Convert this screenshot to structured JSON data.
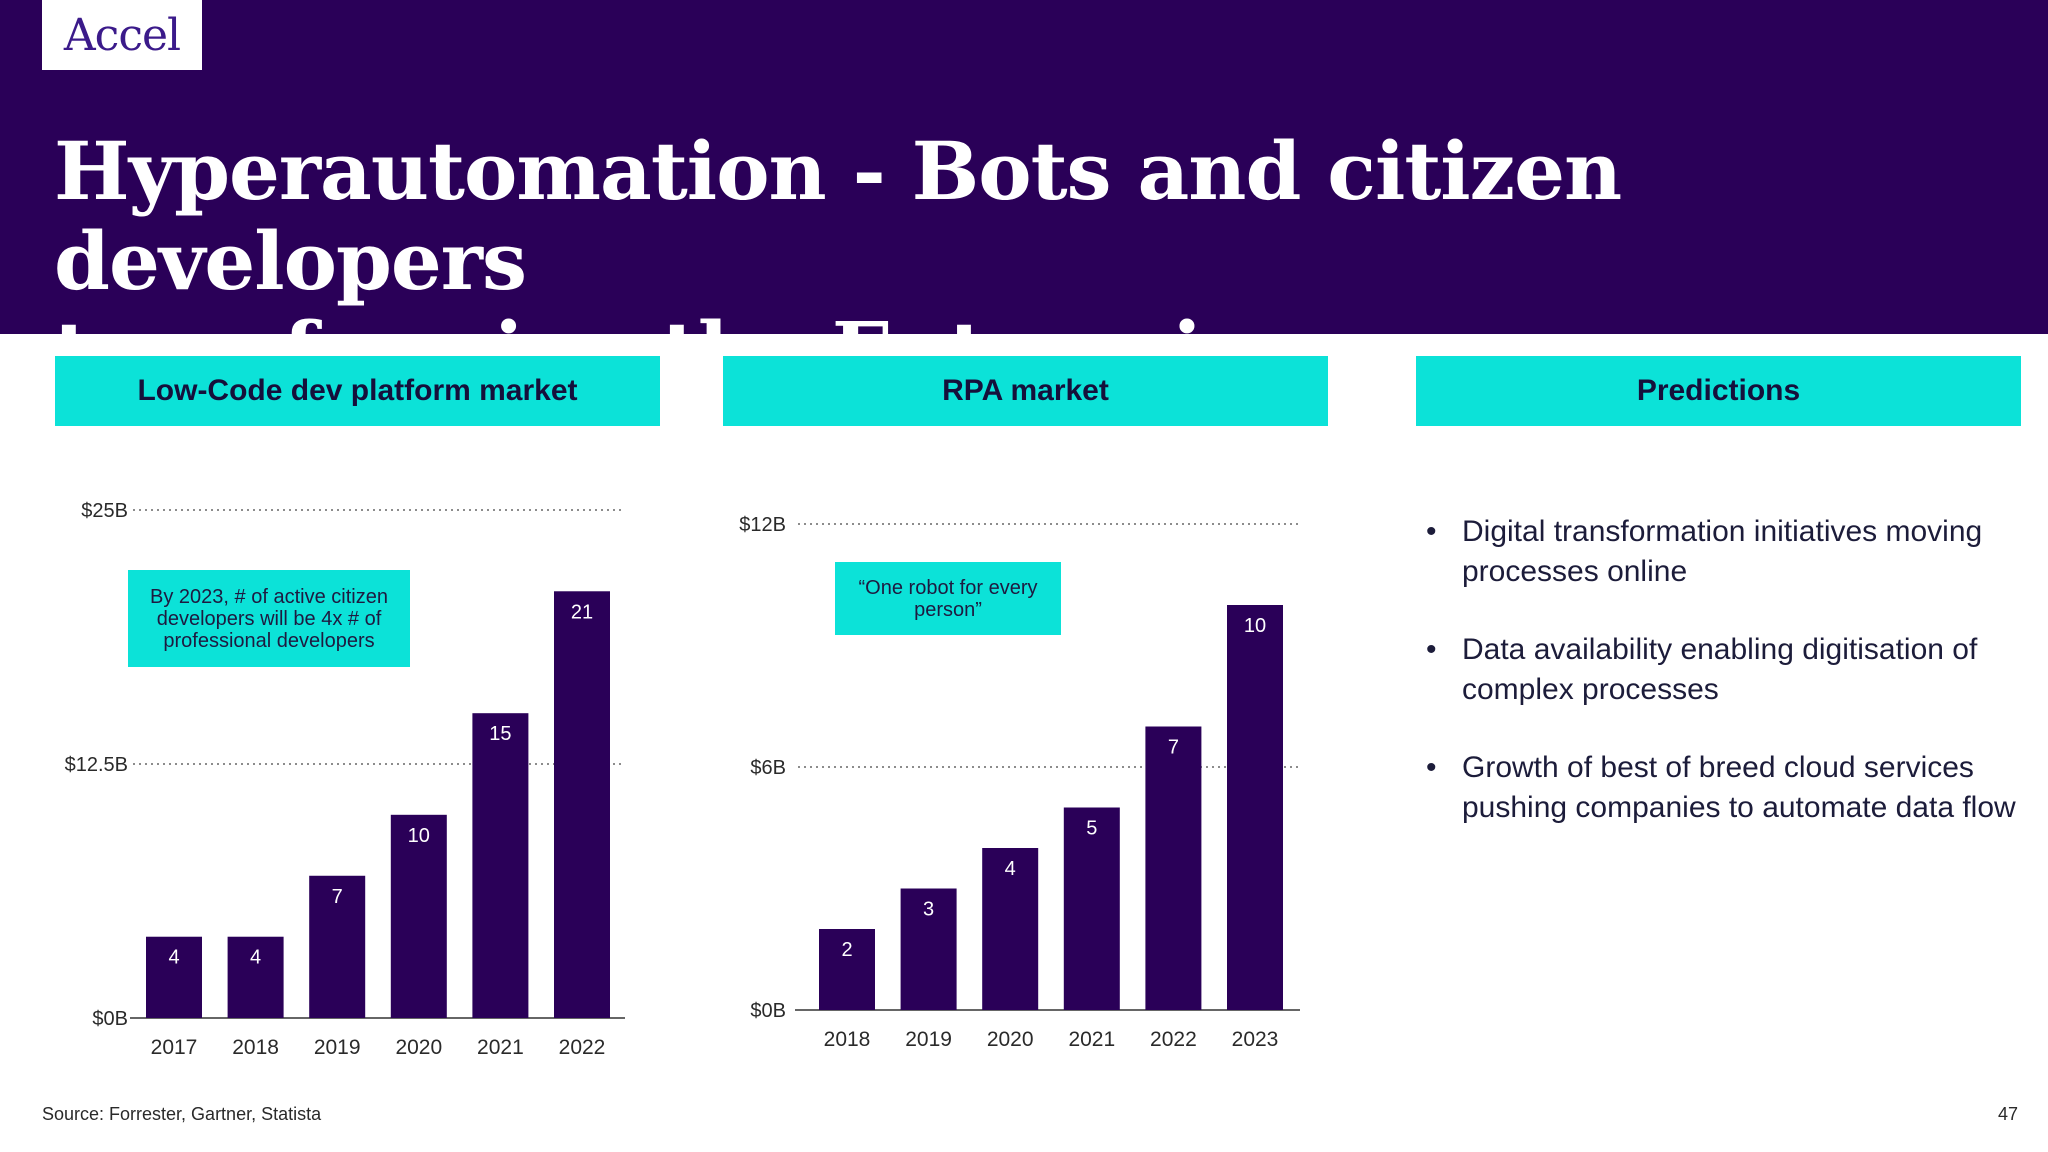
{
  "logo": "Accel",
  "title_line1": "Hyperautomation - Bots and citizen developers",
  "title_line2": "transforming the Enterprise",
  "panels": {
    "left_header": "Low-Code dev platform market",
    "middle_header": "RPA market",
    "right_header": "Predictions"
  },
  "chart_data": [
    {
      "type": "bar",
      "title": "Low-Code dev platform market",
      "categories": [
        "2017",
        "2018",
        "2019",
        "2020",
        "2021",
        "2022"
      ],
      "values": [
        4,
        4,
        7,
        10,
        15,
        21
      ],
      "value_labels": [
        "4",
        "4",
        "7",
        "10",
        "15",
        "21"
      ],
      "yticks": [
        0,
        12.5,
        25
      ],
      "ytick_labels": [
        "$0B",
        "$12.5B",
        "$25B"
      ],
      "ylim": [
        0,
        25
      ],
      "bar_color": "#2a0058",
      "annotation": "By 2023, # of active citizen developers will be 4x # of professional developers"
    },
    {
      "type": "bar",
      "title": "RPA market",
      "categories": [
        "2018",
        "2019",
        "2020",
        "2021",
        "2022",
        "2023"
      ],
      "values": [
        2,
        3,
        4,
        5,
        7,
        10
      ],
      "value_labels": [
        "2",
        "3",
        "4",
        "5",
        "7",
        "10"
      ],
      "yticks": [
        0,
        6,
        12
      ],
      "ytick_labels": [
        "$0B",
        "$6B",
        "$12B"
      ],
      "ylim": [
        0,
        12
      ],
      "bar_color": "#2a0058",
      "annotation": "“One robot for every person”"
    }
  ],
  "predictions": [
    "Digital transformation initiatives moving processes online",
    "Data availability enabling digitisation of complex processes",
    "Growth of best of breed cloud services pushing companies to automate data flow"
  ],
  "source": "Source: Forrester, Gartner, Statista",
  "page_number": "47",
  "colors": {
    "header_bg": "#2a0058",
    "accent": "#0ce2d8",
    "bar": "#2a0058"
  }
}
